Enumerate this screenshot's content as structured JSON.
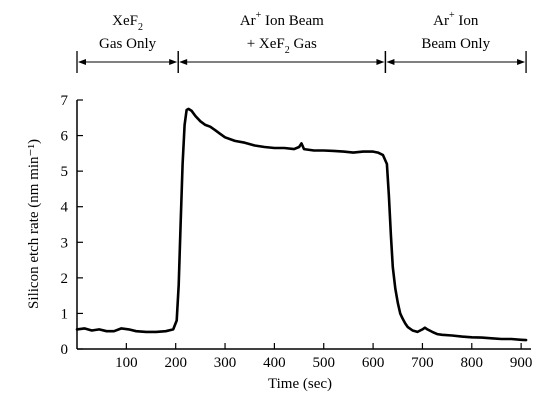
{
  "chart_data": {
    "type": "line",
    "xlabel": "Time (sec)",
    "ylabel": "Silicon etch rate (nm min⁻¹)",
    "xlim": [
      0,
      920
    ],
    "ylim": [
      0,
      7
    ],
    "x_ticks": [
      100,
      200,
      300,
      400,
      500,
      600,
      700,
      800,
      900
    ],
    "y_ticks": [
      0,
      1,
      2,
      3,
      4,
      5,
      6,
      7
    ],
    "grid": false,
    "phases": [
      {
        "start": 0,
        "end": 205,
        "line1_main": "XeF",
        "line1_sub": "2",
        "line1_sup": "",
        "line1_tail": "",
        "line2_main": "Gas Only",
        "line2_sub": "",
        "line2_tail": ""
      },
      {
        "start": 205,
        "end": 625,
        "line1_main": "Ar",
        "line1_sub": "",
        "line1_sup": "+",
        "line1_tail": " Ion Beam",
        "line2_main": "+ XeF",
        "line2_sub": "2",
        "line2_tail": " Gas"
      },
      {
        "start": 625,
        "end": 910,
        "line1_main": "Ar",
        "line1_sub": "",
        "line1_sup": "+",
        "line1_tail": " Ion",
        "line2_main": "Beam  Only",
        "line2_sub": "",
        "line2_tail": ""
      }
    ],
    "series": [
      {
        "color": "#000000",
        "x": [
          0,
          15,
          30,
          45,
          60,
          75,
          90,
          105,
          120,
          140,
          160,
          180,
          195,
          202,
          206,
          210,
          214,
          218,
          222,
          226,
          232,
          240,
          250,
          260,
          270,
          280,
          290,
          300,
          320,
          340,
          360,
          380,
          400,
          420,
          440,
          450,
          455,
          460,
          480,
          500,
          520,
          540,
          560,
          580,
          590,
          600,
          610,
          620,
          628,
          632,
          636,
          640,
          645,
          650,
          655,
          660,
          665,
          670,
          680,
          690,
          700,
          705,
          710,
          720,
          730,
          740,
          760,
          780,
          800,
          820,
          840,
          860,
          880,
          900,
          910
        ],
        "y": [
          0.55,
          0.58,
          0.52,
          0.55,
          0.5,
          0.5,
          0.58,
          0.55,
          0.5,
          0.48,
          0.48,
          0.5,
          0.55,
          0.8,
          1.8,
          3.5,
          5.2,
          6.3,
          6.72,
          6.75,
          6.7,
          6.55,
          6.4,
          6.3,
          6.25,
          6.15,
          6.05,
          5.95,
          5.85,
          5.8,
          5.72,
          5.68,
          5.65,
          5.65,
          5.62,
          5.68,
          5.78,
          5.62,
          5.58,
          5.58,
          5.57,
          5.55,
          5.52,
          5.55,
          5.55,
          5.55,
          5.52,
          5.45,
          5.2,
          4.3,
          3.2,
          2.3,
          1.7,
          1.3,
          1.0,
          0.85,
          0.72,
          0.62,
          0.52,
          0.48,
          0.55,
          0.6,
          0.55,
          0.48,
          0.42,
          0.4,
          0.38,
          0.35,
          0.33,
          0.32,
          0.3,
          0.28,
          0.28,
          0.26,
          0.25
        ]
      }
    ]
  }
}
